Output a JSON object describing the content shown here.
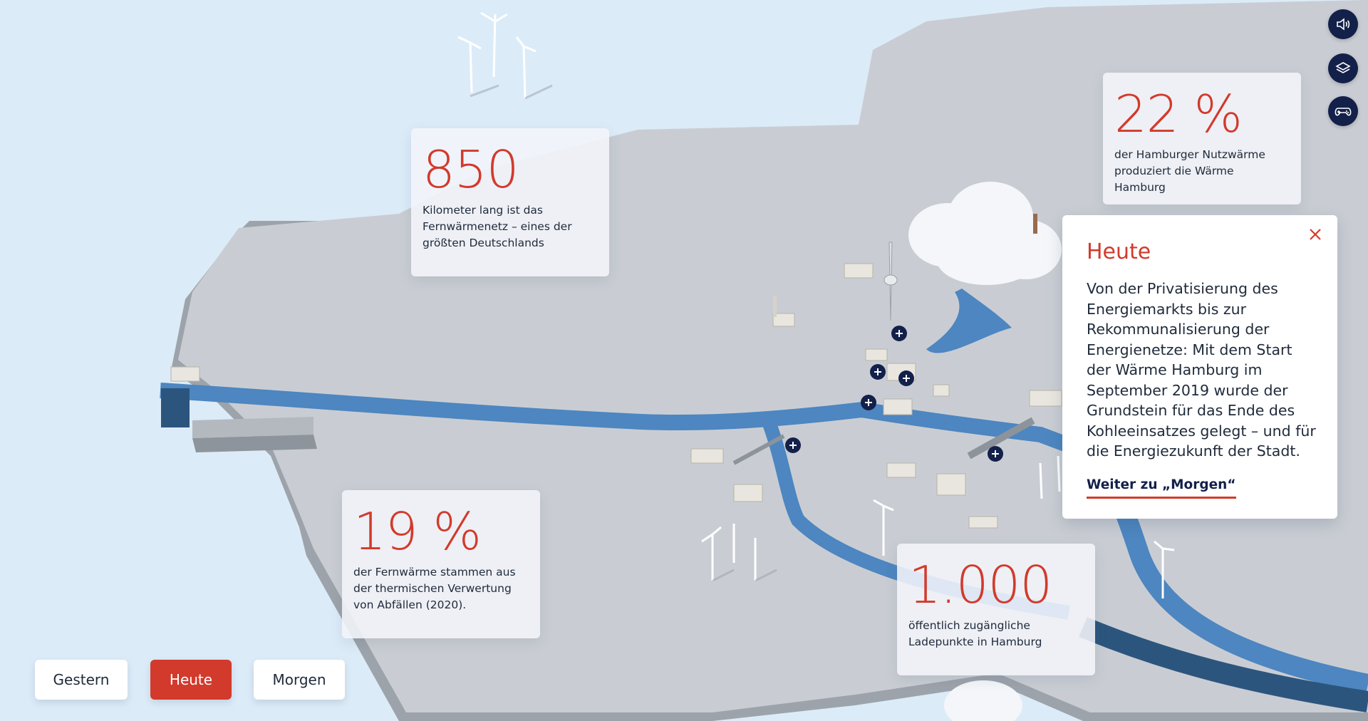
{
  "stats": [
    {
      "value": "850",
      "text": "Kilometer lang ist das Fernwärmenetz – eines der größten Deutschlands"
    },
    {
      "value": "22 %",
      "text": "der Hamburger Nutzwärme produziert die Wärme Hamburg"
    },
    {
      "value": "19 %",
      "text": "der Fernwärme stammen aus der thermischen Verwertung von Abfällen (2020)."
    },
    {
      "value": "1.000",
      "text": "öffentlich zugängliche Ladepunkte in Hamburg"
    }
  ],
  "detail": {
    "title": "Heute",
    "body": "Von der Privatisierung des Energiemarkts bis zur Rekommunalisierung der Energienetze: Mit dem Start der Wärme Hamburg im September 2019 wurde der Grundstein für das Ende des Kohleeinsatzes gelegt – und für die Energiezukunft der Stadt.",
    "link": "Weiter zu „Morgen“",
    "close_icon": "close-icon"
  },
  "side_controls": [
    {
      "icon": "speaker-icon"
    },
    {
      "icon": "layers-icon"
    },
    {
      "icon": "gamepad-icon"
    }
  ],
  "timeline": {
    "buttons": [
      "Gestern",
      "Heute",
      "Morgen"
    ],
    "active": "Heute"
  },
  "colors": {
    "accent": "#d23a2c",
    "navy": "#13204a",
    "water": "#dcebf8",
    "land": "#c8ccd2",
    "river": "#4d86c0"
  }
}
